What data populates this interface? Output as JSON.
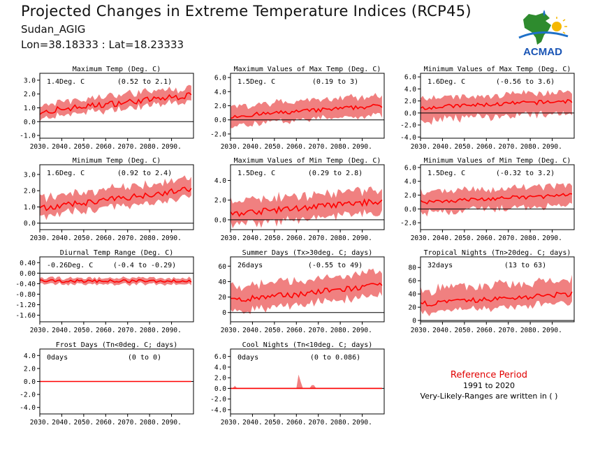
{
  "header": {
    "title": "Projected Changes in Extreme Temperature Indices (RCP45)",
    "region": "Sudan_AGIG",
    "coords": "Lon=38.18333 : Lat=18.23333"
  },
  "logo": {
    "text": "ACMAD"
  },
  "reference": {
    "title": "Reference Period",
    "years": "1991 to 2020",
    "note": "Very-Likely-Ranges are written in ( )"
  },
  "colors": {
    "band": "#f08080",
    "line": "#ff0000",
    "zero": "#000000"
  },
  "chart_data": [
    {
      "id": "p1",
      "type": "area",
      "title": "Maximum Temp (Deg. C)",
      "label": "1.4Deg. C",
      "range": "(0.52 to 2.1)",
      "yticks": [
        3.0,
        2.0,
        1.0,
        0.0,
        -1.0
      ],
      "ylim": [
        -1.2,
        3.5
      ],
      "start": 0.75,
      "end": 1.9,
      "wig": 0.22,
      "bandLo": 0.45,
      "bandHi": 0.6,
      "dip": true
    },
    {
      "id": "p2",
      "type": "area",
      "title": "Maximum Values of Max Temp (Deg. C)",
      "label": "1.5Deg. C",
      "range": "(0.19 to 3)",
      "yticks": [
        6.0,
        4.0,
        2.0,
        0.0,
        -2.0
      ],
      "ylim": [
        -2.6,
        6.6
      ],
      "start": 0.5,
      "end": 2.0,
      "wig": 0.3,
      "bandLo": 1.3,
      "bandHi": 1.5
    },
    {
      "id": "p3",
      "type": "area",
      "title": "Minimum Values of Max Temp (Deg. C)",
      "label": "1.6Deg. C",
      "range": "(-0.56 to 3.6)",
      "yticks": [
        6.0,
        4.0,
        2.0,
        0.0,
        -2.0,
        -4.0
      ],
      "ylim": [
        -4.2,
        6.6
      ],
      "start": 0.9,
      "end": 2.0,
      "wig": 0.35,
      "bandLo": 2.2,
      "bandHi": 1.6
    },
    {
      "id": "p4",
      "type": "area",
      "title": "Minimum Temp (Deg. C)",
      "label": "1.6Deg. C",
      "range": "(0.92 to 2.4)",
      "yticks": [
        3.0,
        2.0,
        1.0,
        0.0
      ],
      "ylim": [
        -0.4,
        3.6
      ],
      "start": 0.9,
      "end": 2.1,
      "wig": 0.18,
      "bandLo": 0.5,
      "bandHi": 0.7
    },
    {
      "id": "p5",
      "type": "area",
      "title": "Maximum Values of Min Temp (Deg. C)",
      "label": "1.5Deg. C",
      "range": "(0.29 to 2.8)",
      "yticks": [
        4.0,
        2.0,
        0.0
      ],
      "ylim": [
        -1.0,
        5.6
      ],
      "start": 0.6,
      "end": 1.9,
      "wig": 0.3,
      "bandLo": 1.2,
      "bandHi": 1.3
    },
    {
      "id": "p6",
      "type": "area",
      "title": "Minimum Values of Min Temp (Deg. C)",
      "label": "1.5Deg. C",
      "range": "(-0.32 to 3.2)",
      "yticks": [
        6.0,
        4.0,
        2.0,
        0.0,
        -2.0
      ],
      "ylim": [
        -3.0,
        6.4
      ],
      "start": 1.0,
      "end": 2.0,
      "wig": 0.3,
      "bandLo": 1.6,
      "bandHi": 1.5
    },
    {
      "id": "p7",
      "type": "area",
      "title": "Diurnal Temp Range (Deg. C)",
      "label": "-0.26Deg. C",
      "range": "(-0.4 to -0.29)",
      "yticks": [
        0.4,
        0.0,
        -0.4,
        -0.8,
        -1.2,
        -1.6
      ],
      "ylim": [
        -1.85,
        0.62
      ],
      "start": -0.3,
      "end": -0.3,
      "wig": 0.05,
      "bandLo": 0.12,
      "bandHi": 0.12
    },
    {
      "id": "p8",
      "type": "area",
      "title": "Summer Days (Tx>30deg. C; days)",
      "label": "26days",
      "range": "(-0.55 to 49)",
      "yticks": [
        60,
        40,
        20,
        0
      ],
      "ylim": [
        -12,
        72
      ],
      "start": 15,
      "end": 35,
      "wig": 4,
      "bandLo": 15,
      "bandHi": 18
    },
    {
      "id": "p9",
      "type": "area",
      "title": "Tropical Nights (Tn>20deg. C; days)",
      "label": "32days",
      "range": "(13 to 63)",
      "yticks": [
        80,
        60,
        40,
        20,
        0
      ],
      "ylim": [
        -2,
        96
      ],
      "start": 25,
      "end": 40,
      "wig": 4,
      "bandLo": 14,
      "bandHi": 22
    },
    {
      "id": "p10",
      "type": "area",
      "title": "Frost Days (Tn<0deg. C; days)",
      "label": "0days",
      "range": "(0 to 0)",
      "yticks": [
        4.0,
        2.0,
        0.0,
        -2.0,
        -4.0
      ],
      "ylim": [
        -5.0,
        5.0
      ],
      "start": 0,
      "end": 0,
      "wig": 0,
      "bandLo": 0,
      "bandHi": 0,
      "flat": true
    },
    {
      "id": "p11",
      "type": "area",
      "title": "Cool Nights (Tn<10deg. C; days)",
      "label": "0days",
      "range": "(0 to 0.086)",
      "yticks": [
        6.0,
        4.0,
        2.0,
        0.0,
        -2.0,
        -4.0
      ],
      "ylim": [
        -4.8,
        7.4
      ],
      "start": 0,
      "end": 0,
      "wig": 0,
      "bandLo": 0,
      "bandHi": 0,
      "flat": true,
      "spikes": true
    }
  ],
  "xticks": [
    "2030.",
    "2040.",
    "2050.",
    "2060.",
    "2070.",
    "2080.",
    "2090."
  ]
}
